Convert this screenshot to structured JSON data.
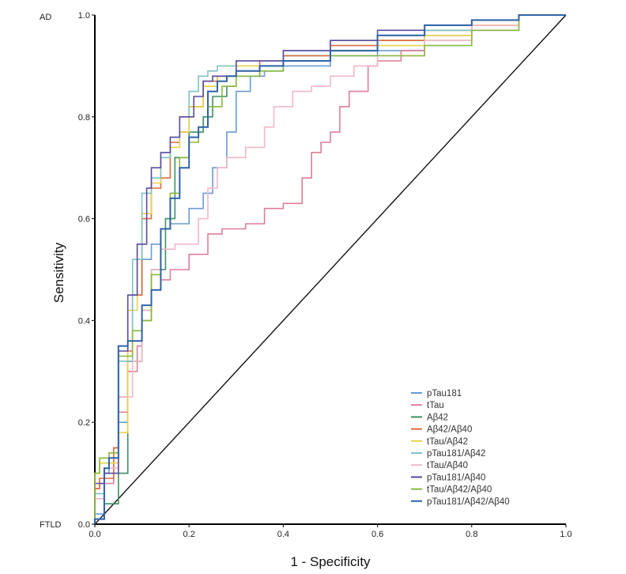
{
  "chart_data": {
    "type": "line",
    "xlabel": "1 - Specificity",
    "ylabel": "Sensitivity",
    "xlim": [
      0,
      1
    ],
    "ylim": [
      0,
      1
    ],
    "x_ticks": [
      "0.0",
      "0.2",
      "0.4",
      "0.6",
      "0.8",
      "1.0"
    ],
    "y_ticks": [
      "0.0",
      "0.2",
      "0.4",
      "0.6",
      "0.8",
      "1.0"
    ],
    "top_label": "AD",
    "bottom_label": "FTLD",
    "legend_position": "bottom-right",
    "grid": false,
    "diagonal": [
      [
        0,
        0
      ],
      [
        1,
        1
      ]
    ],
    "series": [
      {
        "name": "pTau181",
        "color": "#6a9bd1",
        "points": [
          [
            0,
            0
          ],
          [
            0.02,
            0.02
          ],
          [
            0.03,
            0.1
          ],
          [
            0.05,
            0.12
          ],
          [
            0.07,
            0.2
          ],
          [
            0.08,
            0.32
          ],
          [
            0.1,
            0.45
          ],
          [
            0.12,
            0.52
          ],
          [
            0.14,
            0.55
          ],
          [
            0.16,
            0.58
          ],
          [
            0.2,
            0.59
          ],
          [
            0.23,
            0.62
          ],
          [
            0.25,
            0.65
          ],
          [
            0.28,
            0.7
          ],
          [
            0.3,
            0.77
          ],
          [
            0.33,
            0.85
          ],
          [
            0.36,
            0.88
          ],
          [
            0.4,
            0.89
          ],
          [
            0.5,
            0.9
          ],
          [
            0.6,
            0.92
          ],
          [
            0.7,
            0.93
          ],
          [
            0.8,
            0.95
          ],
          [
            0.9,
            0.97
          ],
          [
            1,
            1
          ]
        ]
      },
      {
        "name": "tTau",
        "color": "#dc7f98",
        "points": [
          [
            0,
            0
          ],
          [
            0.01,
            0.07
          ],
          [
            0.04,
            0.08
          ],
          [
            0.05,
            0.15
          ],
          [
            0.07,
            0.22
          ],
          [
            0.09,
            0.3
          ],
          [
            0.1,
            0.35
          ],
          [
            0.12,
            0.4
          ],
          [
            0.14,
            0.46
          ],
          [
            0.16,
            0.48
          ],
          [
            0.2,
            0.5
          ],
          [
            0.24,
            0.53
          ],
          [
            0.27,
            0.57
          ],
          [
            0.32,
            0.58
          ],
          [
            0.36,
            0.59
          ],
          [
            0.4,
            0.62
          ],
          [
            0.44,
            0.63
          ],
          [
            0.46,
            0.68
          ],
          [
            0.48,
            0.73
          ],
          [
            0.5,
            0.75
          ],
          [
            0.52,
            0.77
          ],
          [
            0.54,
            0.82
          ],
          [
            0.58,
            0.85
          ],
          [
            0.6,
            0.9
          ],
          [
            0.65,
            0.91
          ],
          [
            0.7,
            0.93
          ],
          [
            0.8,
            0.96
          ],
          [
            0.9,
            0.98
          ],
          [
            1,
            1
          ]
        ]
      },
      {
        "name": "Aβ42",
        "color": "#3d8f66",
        "points": [
          [
            0,
            0
          ],
          [
            0.02,
            0.01
          ],
          [
            0.05,
            0.04
          ],
          [
            0.07,
            0.1
          ],
          [
            0.1,
            0.32
          ],
          [
            0.12,
            0.42
          ],
          [
            0.15,
            0.5
          ],
          [
            0.17,
            0.6
          ],
          [
            0.2,
            0.72
          ],
          [
            0.23,
            0.77
          ],
          [
            0.25,
            0.8
          ],
          [
            0.28,
            0.84
          ],
          [
            0.3,
            0.86
          ],
          [
            0.35,
            0.88
          ],
          [
            0.4,
            0.9
          ],
          [
            0.5,
            0.92
          ],
          [
            0.6,
            0.93
          ],
          [
            0.7,
            0.95
          ],
          [
            0.8,
            0.97
          ],
          [
            0.9,
            0.99
          ],
          [
            1,
            1
          ]
        ]
      },
      {
        "name": "Aβ42/Aβ40",
        "color": "#e06a3c",
        "points": [
          [
            0,
            0
          ],
          [
            0.01,
            0.07
          ],
          [
            0.04,
            0.09
          ],
          [
            0.05,
            0.15
          ],
          [
            0.07,
            0.25
          ],
          [
            0.08,
            0.34
          ],
          [
            0.1,
            0.45
          ],
          [
            0.12,
            0.6
          ],
          [
            0.14,
            0.66
          ],
          [
            0.16,
            0.68
          ],
          [
            0.18,
            0.75
          ],
          [
            0.2,
            0.77
          ],
          [
            0.23,
            0.82
          ],
          [
            0.26,
            0.87
          ],
          [
            0.3,
            0.88
          ],
          [
            0.35,
            0.89
          ],
          [
            0.4,
            0.91
          ],
          [
            0.5,
            0.92
          ],
          [
            0.6,
            0.94
          ],
          [
            0.7,
            0.95
          ],
          [
            0.8,
            0.97
          ],
          [
            0.9,
            0.99
          ],
          [
            1,
            1
          ]
        ]
      },
      {
        "name": "tTau/Aβ42",
        "color": "#e8d24a",
        "points": [
          [
            0,
            0
          ],
          [
            0.01,
            0.1
          ],
          [
            0.05,
            0.12
          ],
          [
            0.07,
            0.18
          ],
          [
            0.09,
            0.42
          ],
          [
            0.1,
            0.55
          ],
          [
            0.12,
            0.61
          ],
          [
            0.14,
            0.67
          ],
          [
            0.16,
            0.72
          ],
          [
            0.18,
            0.74
          ],
          [
            0.2,
            0.77
          ],
          [
            0.23,
            0.82
          ],
          [
            0.26,
            0.86
          ],
          [
            0.3,
            0.88
          ],
          [
            0.4,
            0.9
          ],
          [
            0.5,
            0.91
          ],
          [
            0.6,
            0.93
          ],
          [
            0.7,
            0.94
          ],
          [
            0.8,
            0.96
          ],
          [
            0.9,
            0.98
          ],
          [
            1,
            1
          ]
        ]
      },
      {
        "name": "pTau181/Aβ42",
        "color": "#7ec3c4",
        "points": [
          [
            0,
            0
          ],
          [
            0.02,
            0.06
          ],
          [
            0.05,
            0.11
          ],
          [
            0.08,
            0.32
          ],
          [
            0.1,
            0.52
          ],
          [
            0.12,
            0.65
          ],
          [
            0.14,
            0.68
          ],
          [
            0.16,
            0.72
          ],
          [
            0.18,
            0.76
          ],
          [
            0.2,
            0.8
          ],
          [
            0.22,
            0.85
          ],
          [
            0.24,
            0.88
          ],
          [
            0.26,
            0.89
          ],
          [
            0.3,
            0.9
          ],
          [
            0.4,
            0.91
          ],
          [
            0.5,
            0.93
          ],
          [
            0.6,
            0.95
          ],
          [
            0.7,
            0.96
          ],
          [
            0.8,
            0.97
          ],
          [
            0.9,
            0.99
          ],
          [
            1,
            1
          ]
        ]
      },
      {
        "name": "tTau/Aβ40",
        "color": "#f2b8c6",
        "points": [
          [
            0,
            0
          ],
          [
            0.02,
            0.05
          ],
          [
            0.05,
            0.11
          ],
          [
            0.08,
            0.25
          ],
          [
            0.1,
            0.32
          ],
          [
            0.12,
            0.42
          ],
          [
            0.14,
            0.5
          ],
          [
            0.17,
            0.54
          ],
          [
            0.22,
            0.55
          ],
          [
            0.24,
            0.6
          ],
          [
            0.26,
            0.66
          ],
          [
            0.28,
            0.7
          ],
          [
            0.32,
            0.72
          ],
          [
            0.36,
            0.74
          ],
          [
            0.38,
            0.78
          ],
          [
            0.42,
            0.82
          ],
          [
            0.46,
            0.85
          ],
          [
            0.5,
            0.86
          ],
          [
            0.55,
            0.88
          ],
          [
            0.6,
            0.9
          ],
          [
            0.7,
            0.92
          ],
          [
            0.8,
            0.95
          ],
          [
            0.9,
            0.98
          ],
          [
            1,
            1
          ]
        ]
      },
      {
        "name": "pTau181/Aβ40",
        "color": "#5a4aa0",
        "points": [
          [
            0,
            0
          ],
          [
            0.02,
            0.08
          ],
          [
            0.05,
            0.1
          ],
          [
            0.05,
            0.18
          ],
          [
            0.07,
            0.34
          ],
          [
            0.09,
            0.45
          ],
          [
            0.11,
            0.55
          ],
          [
            0.12,
            0.66
          ],
          [
            0.14,
            0.7
          ],
          [
            0.16,
            0.73
          ],
          [
            0.18,
            0.76
          ],
          [
            0.21,
            0.8
          ],
          [
            0.23,
            0.84
          ],
          [
            0.25,
            0.87
          ],
          [
            0.3,
            0.88
          ],
          [
            0.4,
            0.91
          ],
          [
            0.5,
            0.93
          ],
          [
            0.6,
            0.95
          ],
          [
            0.7,
            0.97
          ],
          [
            0.8,
            0.98
          ],
          [
            0.9,
            0.99
          ],
          [
            1,
            1
          ]
        ]
      },
      {
        "name": "tTau/Aβ42/Aβ40",
        "color": "#8ab83e",
        "points": [
          [
            0,
            0
          ],
          [
            0.01,
            0.1
          ],
          [
            0.03,
            0.13
          ],
          [
            0.05,
            0.14
          ],
          [
            0.05,
            0.32
          ],
          [
            0.08,
            0.33
          ],
          [
            0.1,
            0.38
          ],
          [
            0.12,
            0.4
          ],
          [
            0.14,
            0.49
          ],
          [
            0.16,
            0.58
          ],
          [
            0.18,
            0.65
          ],
          [
            0.2,
            0.72
          ],
          [
            0.22,
            0.75
          ],
          [
            0.24,
            0.78
          ],
          [
            0.27,
            0.82
          ],
          [
            0.3,
            0.86
          ],
          [
            0.35,
            0.88
          ],
          [
            0.4,
            0.89
          ],
          [
            0.5,
            0.91
          ],
          [
            0.6,
            0.92
          ],
          [
            0.7,
            0.92
          ],
          [
            0.8,
            0.94
          ],
          [
            0.9,
            0.97
          ],
          [
            1,
            1
          ]
        ]
      },
      {
        "name": "pTau181/Aβ42/Aβ40",
        "color": "#2f63a8",
        "points": [
          [
            0,
            0
          ],
          [
            0.02,
            0.01
          ],
          [
            0.03,
            0.11
          ],
          [
            0.05,
            0.13
          ],
          [
            0.05,
            0.31
          ],
          [
            0.07,
            0.35
          ],
          [
            0.1,
            0.36
          ],
          [
            0.12,
            0.43
          ],
          [
            0.14,
            0.46
          ],
          [
            0.16,
            0.58
          ],
          [
            0.18,
            0.64
          ],
          [
            0.2,
            0.7
          ],
          [
            0.22,
            0.76
          ],
          [
            0.24,
            0.78
          ],
          [
            0.26,
            0.85
          ],
          [
            0.28,
            0.87
          ],
          [
            0.3,
            0.88
          ],
          [
            0.35,
            0.89
          ],
          [
            0.4,
            0.9
          ],
          [
            0.5,
            0.91
          ],
          [
            0.6,
            0.93
          ],
          [
            0.7,
            0.96
          ],
          [
            0.8,
            0.98
          ],
          [
            0.9,
            0.99
          ],
          [
            1,
            1
          ]
        ]
      }
    ]
  }
}
